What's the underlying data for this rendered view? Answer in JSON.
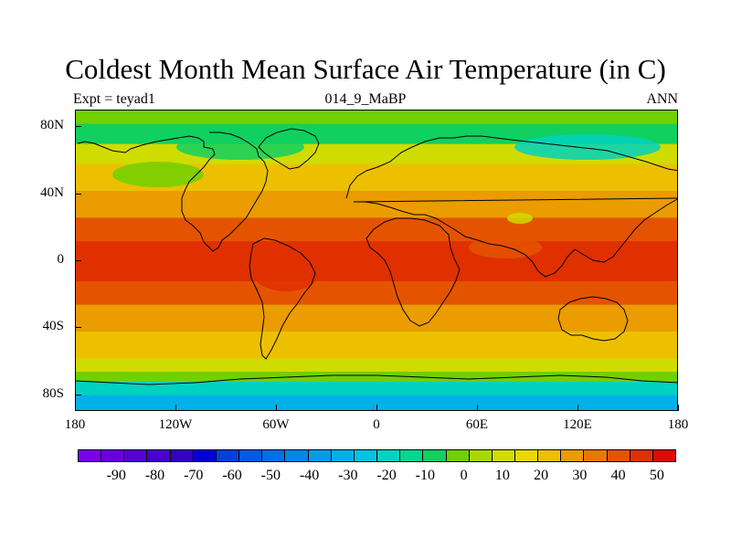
{
  "title": "Coldest Month Mean Surface Air Temperature (in C)",
  "subtitle_left": "Expt = teyad1",
  "subtitle_center": "014_9_MaBP",
  "subtitle_right": "ANN",
  "map": {
    "lon_range": [
      -180,
      180
    ],
    "lat_range": [
      -90,
      90
    ],
    "lat_labels": [
      {
        "lat": 80,
        "text": "80N"
      },
      {
        "lat": 40,
        "text": "40N"
      },
      {
        "lat": 0,
        "text": "0"
      },
      {
        "lat": -40,
        "text": "40S"
      },
      {
        "lat": -80,
        "text": "80S"
      }
    ],
    "lon_labels": [
      {
        "lon": -180,
        "text": "180"
      },
      {
        "lon": -120,
        "text": "120W"
      },
      {
        "lon": -60,
        "text": "60W"
      },
      {
        "lon": 0,
        "text": "0"
      },
      {
        "lon": 60,
        "text": "60E"
      },
      {
        "lon": 120,
        "text": "120E"
      },
      {
        "lon": 180,
        "text": "180"
      }
    ],
    "temperature_bands": [
      {
        "lat_from": 90,
        "lat_to": 82,
        "value": 0
      },
      {
        "lat_from": 82,
        "lat_to": 70,
        "value": -10
      },
      {
        "lat_from": 70,
        "lat_to": 58,
        "value": 10
      },
      {
        "lat_from": 58,
        "lat_to": 42,
        "value": 20
      },
      {
        "lat_from": 42,
        "lat_to": 26,
        "value": 30
      },
      {
        "lat_from": 26,
        "lat_to": 12,
        "value": 40
      },
      {
        "lat_from": 12,
        "lat_to": -12,
        "value": 45
      },
      {
        "lat_from": -12,
        "lat_to": -26,
        "value": 40
      },
      {
        "lat_from": -26,
        "lat_to": -42,
        "value": 30
      },
      {
        "lat_from": -42,
        "lat_to": -58,
        "value": 20
      },
      {
        "lat_from": -58,
        "lat_to": -66,
        "value": 10
      },
      {
        "lat_from": -66,
        "lat_to": -72,
        "value": 0
      },
      {
        "lat_from": -72,
        "lat_to": -80,
        "value": -20
      },
      {
        "lat_from": -80,
        "lat_to": -90,
        "value": -30
      }
    ]
  },
  "colorbar": {
    "colors": [
      "#7a00f0",
      "#6600e0",
      "#5500d8",
      "#4a00d0",
      "#3500c8",
      "#0000d8",
      "#0040e0",
      "#005ae8",
      "#0070e8",
      "#0088e8",
      "#009ee8",
      "#00b0e8",
      "#00c4e0",
      "#00d2c0",
      "#00d890",
      "#10d060",
      "#70d000",
      "#a8d800",
      "#d0dc00",
      "#e8d800",
      "#ecc000",
      "#ea9c00",
      "#e87800",
      "#e45400",
      "#e03000",
      "#dc0a00"
    ],
    "labels": [
      "-90",
      "-80",
      "-70",
      "-60",
      "-50",
      "-40",
      "-30",
      "-20",
      "-10",
      "0",
      "10",
      "20",
      "30",
      "40",
      "50"
    ],
    "min": -100,
    "max": 55
  }
}
